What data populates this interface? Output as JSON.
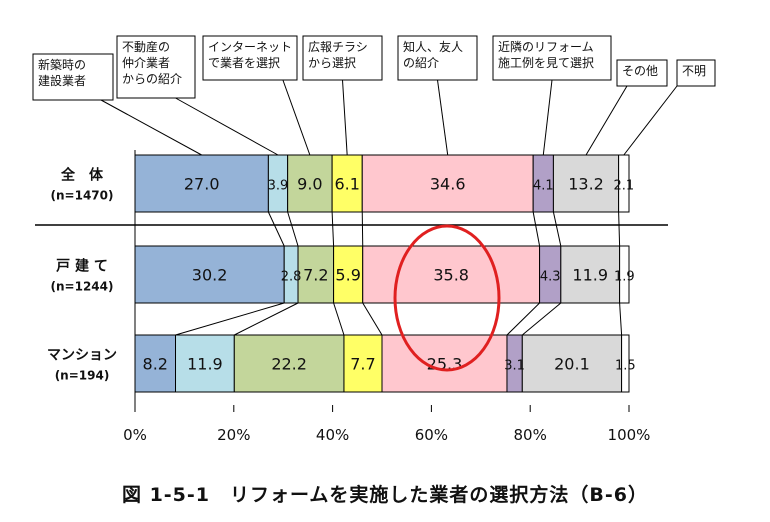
{
  "chart_data": {
    "type": "bar",
    "orientation": "horizontal",
    "stacked": true,
    "percent": true,
    "title": "",
    "caption": "図 1-5-1　リフォームを実施した業者の選択方法（B-6）",
    "categories": [
      {
        "label": "全　体",
        "n": "(n=1470)"
      },
      {
        "label": "戸 建 て",
        "n": "(n=1244)"
      },
      {
        "label": "マンション",
        "n": "(n=194)"
      }
    ],
    "series": [
      {
        "name": "新築時の\n建設業者",
        "color": "#95b3d7",
        "values": [
          27.0,
          30.2,
          8.2
        ]
      },
      {
        "name": "不動産の\n仲介業者\nからの紹介",
        "color": "#b7dee8",
        "values": [
          3.9,
          2.8,
          11.9
        ]
      },
      {
        "name": "インターネット\nで業者を選択",
        "color": "#c3d69b",
        "values": [
          9.0,
          7.2,
          22.2
        ]
      },
      {
        "name": "広報チラシ\nから選択",
        "color": "#ffff66",
        "values": [
          6.1,
          5.9,
          7.7
        ]
      },
      {
        "name": "知人、友人\nの紹介",
        "color": "#ffc7ce",
        "values": [
          34.6,
          35.8,
          25.3
        ]
      },
      {
        "name": "近隣のリフォーム\n施工例を見て選択",
        "color": "#b1a0c7",
        "values": [
          4.1,
          4.3,
          3.1
        ]
      },
      {
        "name": "その他",
        "color": "#d9d9d9",
        "values": [
          13.2,
          11.9,
          20.1
        ]
      },
      {
        "name": "不明",
        "color": "#ffffff",
        "values": [
          2.1,
          1.9,
          1.5
        ]
      }
    ],
    "value_labels": [
      [
        "27.0",
        "3.9",
        "9.0",
        "6.1",
        "34.6",
        "4.1",
        "13.2",
        "2.1"
      ],
      [
        "30.2",
        "2.8",
        "7.2",
        "5.9",
        "35.8",
        "4.3",
        "11.9",
        "1.9"
      ],
      [
        "8.2",
        "11.9",
        "22.2",
        "7.7",
        "25.3",
        "3.1",
        "20.1",
        "1.5"
      ]
    ],
    "xaxis": {
      "ticks": [
        "0%",
        "20%",
        "40%",
        "60%",
        "80%",
        "100%"
      ],
      "xlim": [
        0,
        100
      ]
    },
    "highlight_ellipse": {
      "around": "戸 建 て 知人、友人の紹介 35.8 / マンション 25.3",
      "color": "#e02020"
    }
  }
}
